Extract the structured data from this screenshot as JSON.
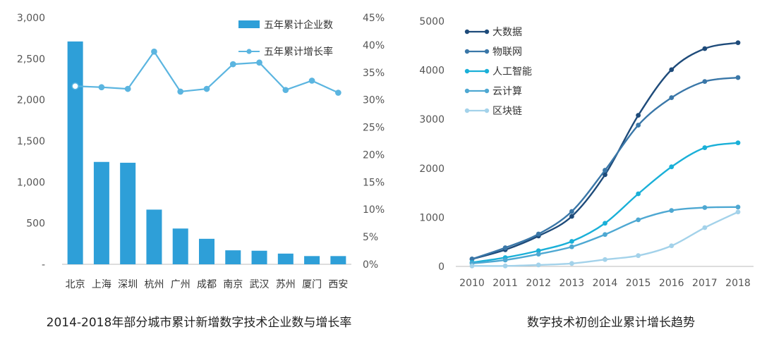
{
  "chart_data": [
    {
      "type": "bar",
      "title": "2014-2018年部分城市累计新增数字技术企业数与增长率",
      "categories": [
        "北京",
        "上海",
        "深圳",
        "杭州",
        "广州",
        "成都",
        "南京",
        "武汉",
        "苏州",
        "厦门",
        "西安"
      ],
      "series": [
        {
          "name": "五年累计企业数",
          "type": "bar",
          "axis": "left",
          "color": "#2e9fd8",
          "values": [
            2710,
            1245,
            1235,
            665,
            435,
            310,
            170,
            165,
            130,
            100,
            100
          ]
        },
        {
          "name": "五年累计增长率",
          "type": "line",
          "axis": "right",
          "color": "#5bb5e0",
          "values": [
            32.5,
            32.3,
            32.0,
            38.8,
            31.5,
            32.0,
            36.5,
            36.8,
            31.8,
            33.5,
            31.3
          ]
        }
      ],
      "ylim_left": [
        0,
        3000
      ],
      "yticks_left": [
        "-",
        "500",
        "1,000",
        "1,500",
        "2,000",
        "2,500",
        "3,000"
      ],
      "ylim_right": [
        0,
        45
      ],
      "yticks_right": [
        "0%",
        "5%",
        "10%",
        "15%",
        "20%",
        "25%",
        "30%",
        "35%",
        "40%",
        "45%"
      ],
      "legend": "top-right",
      "grid": false
    },
    {
      "type": "line",
      "title": "数字技术初创企业累计增长趋势",
      "x": [
        2010,
        2011,
        2012,
        2013,
        2014,
        2015,
        2016,
        2017,
        2018
      ],
      "series": [
        {
          "name": "大数据",
          "color": "#1e4b7a",
          "values": [
            150,
            340,
            620,
            1020,
            1870,
            3080,
            4010,
            4440,
            4560
          ]
        },
        {
          "name": "物联网",
          "color": "#3a77a8",
          "values": [
            150,
            380,
            660,
            1120,
            1960,
            2880,
            3440,
            3770,
            3850
          ]
        },
        {
          "name": "人工智能",
          "color": "#1ab0d8",
          "values": [
            80,
            180,
            320,
            510,
            880,
            1480,
            2030,
            2420,
            2520
          ]
        },
        {
          "name": "云计算",
          "color": "#4ea8d2",
          "values": [
            60,
            130,
            250,
            400,
            650,
            950,
            1140,
            1200,
            1210
          ]
        },
        {
          "name": "区块链",
          "color": "#a3d2ea",
          "values": [
            10,
            10,
            30,
            60,
            140,
            220,
            420,
            790,
            1110
          ]
        }
      ],
      "ylim": [
        0,
        5000
      ],
      "yticks": [
        "0",
        "1000",
        "2000",
        "3000",
        "4000",
        "5000"
      ],
      "legend": "top-left",
      "grid": false
    }
  ]
}
